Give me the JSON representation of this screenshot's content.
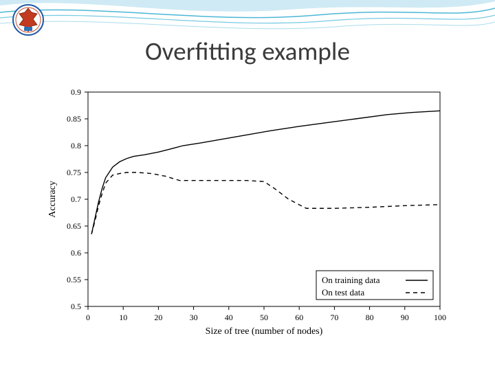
{
  "title": {
    "text": "Overfitting example",
    "fontsize_pt": 28,
    "color": "#3b3b3b"
  },
  "chart": {
    "type": "line",
    "background_color": "#ffffff",
    "plot_border_color": "#000000",
    "xlabel": "Size of tree (number of nodes)",
    "ylabel": "Accuracy",
    "label_fontsize": 14,
    "tick_fontsize": 12,
    "xlim": [
      0,
      100
    ],
    "ylim": [
      0.5,
      0.9
    ],
    "xtick_step": 10,
    "ytick_step": 0.05,
    "xticks": [
      0,
      10,
      20,
      30,
      40,
      50,
      60,
      70,
      80,
      90,
      100
    ],
    "yticks": [
      0.5,
      0.55,
      0.6,
      0.65,
      0.7,
      0.75,
      0.8,
      0.85,
      0.9
    ],
    "series": [
      {
        "name": "On training data",
        "color": "#000000",
        "dash": "solid",
        "line_width": 1.4,
        "x": [
          1,
          2,
          3,
          4,
          5,
          7,
          9,
          11,
          13,
          16,
          20,
          23,
          27,
          32,
          38,
          45,
          52,
          60,
          68,
          76,
          85,
          92,
          100
        ],
        "y": [
          0.635,
          0.665,
          0.695,
          0.72,
          0.74,
          0.76,
          0.77,
          0.776,
          0.78,
          0.783,
          0.788,
          0.793,
          0.8,
          0.805,
          0.812,
          0.82,
          0.828,
          0.836,
          0.843,
          0.85,
          0.858,
          0.862,
          0.865
        ]
      },
      {
        "name": "On test data",
        "color": "#000000",
        "dash": "6,5",
        "line_width": 1.4,
        "x": [
          1,
          2,
          3,
          4,
          5,
          7,
          9,
          11,
          14,
          18,
          22,
          26,
          30,
          35,
          40,
          45,
          50,
          53,
          57,
          62,
          70,
          80,
          90,
          100
        ],
        "y": [
          0.635,
          0.66,
          0.688,
          0.71,
          0.73,
          0.745,
          0.748,
          0.75,
          0.75,
          0.748,
          0.743,
          0.735,
          0.735,
          0.735,
          0.735,
          0.735,
          0.733,
          0.72,
          0.7,
          0.683,
          0.683,
          0.685,
          0.688,
          0.69
        ]
      }
    ],
    "legend": {
      "position": "bottom-right",
      "box_color": "#000000",
      "box_fill": "#ffffff",
      "fontsize": 13,
      "items": [
        {
          "label": "On training data",
          "dash": "solid"
        },
        {
          "label": "On test data",
          "dash": "6,5"
        }
      ]
    }
  }
}
